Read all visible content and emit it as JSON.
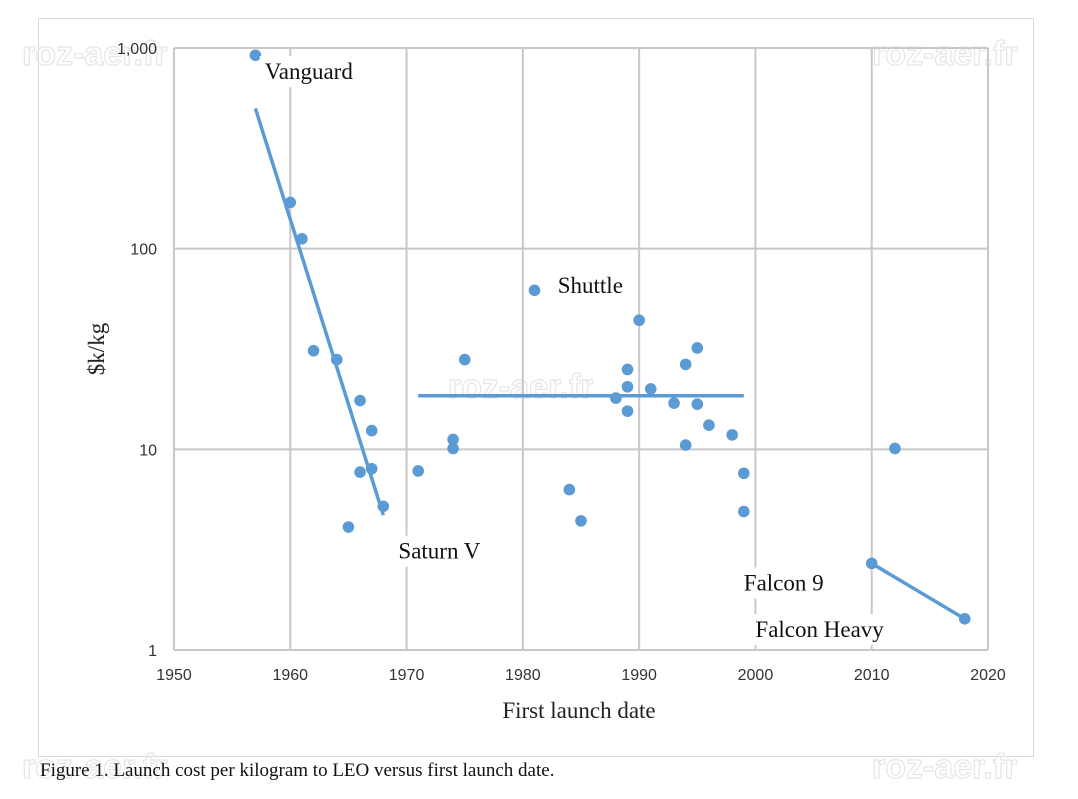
{
  "caption": "Figure 1. Launch cost per kilogram to LEO versus first launch date.",
  "watermarks": [
    "roz-aer.fr",
    "roz-aer.fr",
    "roz-aer.fr",
    "roz-aer.fr",
    "roz-aer.fr"
  ],
  "chart_data": {
    "type": "scatter",
    "title": "",
    "xlabel": "First launch date",
    "ylabel": "$k/kg",
    "xlim": [
      1950,
      2020
    ],
    "ylim": [
      1,
      1000
    ],
    "yscale": "log",
    "grid": true,
    "x_ticks": [
      1950,
      1960,
      1970,
      1980,
      1990,
      2000,
      2010,
      2020
    ],
    "y_ticks": [
      1,
      10,
      100,
      1000
    ],
    "y_tick_labels": [
      "1",
      "10",
      "100",
      "1,000"
    ],
    "point_color": "#5b9bd5",
    "line_color": "#5b9bd5",
    "points": [
      {
        "x": 1957,
        "y": 920
      },
      {
        "x": 1960,
        "y": 170
      },
      {
        "x": 1961,
        "y": 112
      },
      {
        "x": 1962,
        "y": 31
      },
      {
        "x": 1964,
        "y": 28
      },
      {
        "x": 1965,
        "y": 4.1
      },
      {
        "x": 1966,
        "y": 17.5
      },
      {
        "x": 1966,
        "y": 7.7
      },
      {
        "x": 1967,
        "y": 12.4
      },
      {
        "x": 1967,
        "y": 8
      },
      {
        "x": 1968,
        "y": 5.2
      },
      {
        "x": 1971,
        "y": 7.8
      },
      {
        "x": 1974,
        "y": 11.2
      },
      {
        "x": 1974,
        "y": 10.1
      },
      {
        "x": 1975,
        "y": 28
      },
      {
        "x": 1981,
        "y": 62
      },
      {
        "x": 1984,
        "y": 6.3
      },
      {
        "x": 1985,
        "y": 4.4
      },
      {
        "x": 1988,
        "y": 18
      },
      {
        "x": 1989,
        "y": 25
      },
      {
        "x": 1989,
        "y": 20.5
      },
      {
        "x": 1989,
        "y": 15.5
      },
      {
        "x": 1990,
        "y": 44
      },
      {
        "x": 1991,
        "y": 20
      },
      {
        "x": 1993,
        "y": 17
      },
      {
        "x": 1994,
        "y": 26.5
      },
      {
        "x": 1994,
        "y": 10.5
      },
      {
        "x": 1995,
        "y": 32
      },
      {
        "x": 1995,
        "y": 16.8
      },
      {
        "x": 1996,
        "y": 13.2
      },
      {
        "x": 1998,
        "y": 11.8
      },
      {
        "x": 1999,
        "y": 7.6
      },
      {
        "x": 1999,
        "y": 4.9
      },
      {
        "x": 2010,
        "y": 2.7
      },
      {
        "x": 2012,
        "y": 10.1
      },
      {
        "x": 2018,
        "y": 1.43
      }
    ],
    "trend_lines": [
      {
        "x": [
          1957,
          1968
        ],
        "y": [
          500,
          4.7
        ]
      },
      {
        "x": [
          1971,
          1999
        ],
        "y": [
          18.5,
          18.5
        ]
      },
      {
        "x": [
          2010,
          2018
        ],
        "y": [
          2.7,
          1.43
        ]
      }
    ],
    "annotations": [
      {
        "text": "Vanguard",
        "x": 1957.8,
        "y": 700
      },
      {
        "text": "Shuttle",
        "x": 1983,
        "y": 60
      },
      {
        "text": "Saturn V",
        "x": 1969.3,
        "y": 2.85
      },
      {
        "text": "Falcon 9",
        "x": 1999,
        "y": 1.98
      },
      {
        "text": "Falcon Heavy",
        "x": 2000,
        "y": 1.16
      }
    ]
  }
}
